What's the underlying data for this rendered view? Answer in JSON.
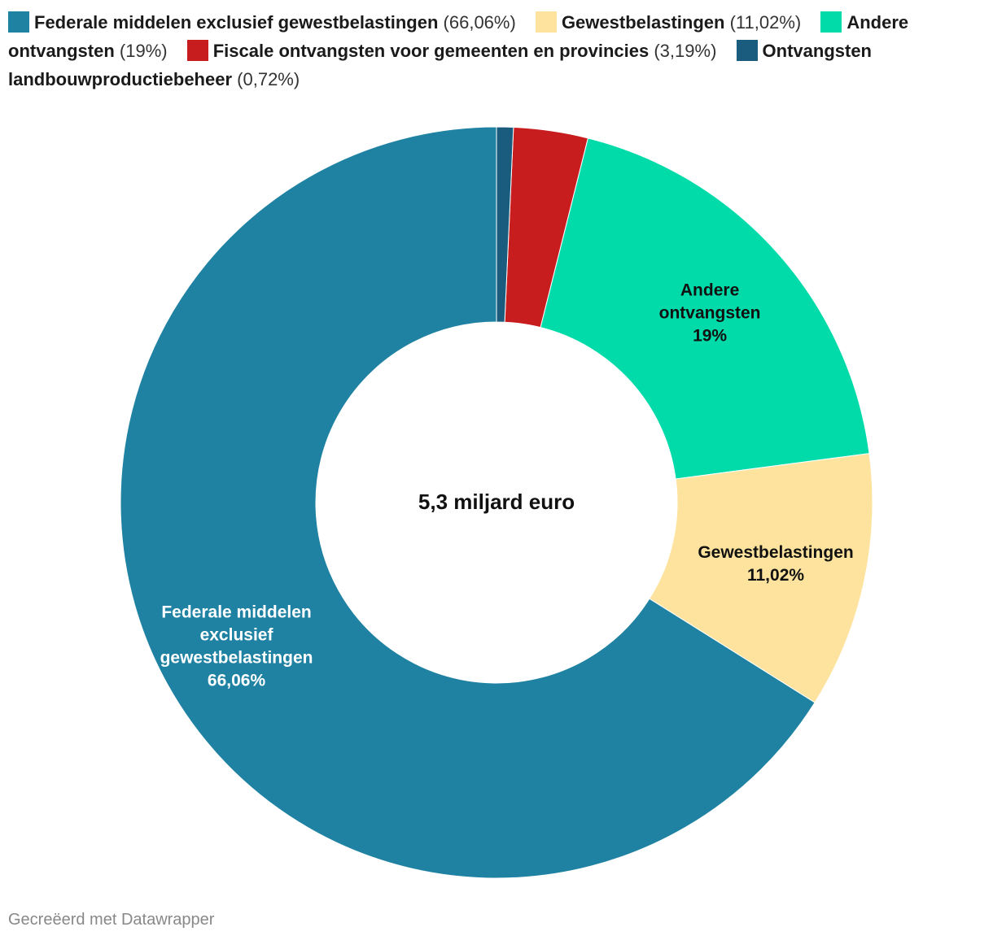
{
  "chart_data": {
    "type": "pie",
    "variant": "donut",
    "center_label": "5,3 miljard euro",
    "series": [
      {
        "name": "Federale middelen exclusief gewestbelastingen",
        "value": 66.06,
        "pct_label": "(66,06%)",
        "slice_label": [
          "Federale middelen",
          "exclusief",
          "gewestbelastingen",
          "66,06%"
        ],
        "color": "#1f82a3",
        "label_color": "#ffffff"
      },
      {
        "name": "Gewestbelastingen",
        "value": 11.02,
        "pct_label": "(11,02%)",
        "slice_label": [
          "Gewestbelastingen",
          "11,02%"
        ],
        "color": "#fde39d",
        "label_color": "#111111"
      },
      {
        "name": "Andere ontvangsten",
        "value": 19,
        "pct_label": "(19%)",
        "slice_label": [
          "Andere",
          "ontvangsten",
          "19%"
        ],
        "color": "#00dba9",
        "label_color": "#111111"
      },
      {
        "name": "Fiscale ontvangsten voor gemeenten en provincies",
        "value": 3.19,
        "pct_label": "(3,19%)",
        "slice_label": [],
        "color": "#c81d1f",
        "label_color": "#ffffff"
      },
      {
        "name": "Ontvangsten landbouwproductiebeheer",
        "value": 0.72,
        "pct_label": "(0,72%)",
        "slice_label": [],
        "color": "#1a5c7d",
        "label_color": "#ffffff"
      }
    ],
    "legend_position": "top"
  },
  "footer": {
    "credit": "Gecreëerd met Datawrapper"
  }
}
